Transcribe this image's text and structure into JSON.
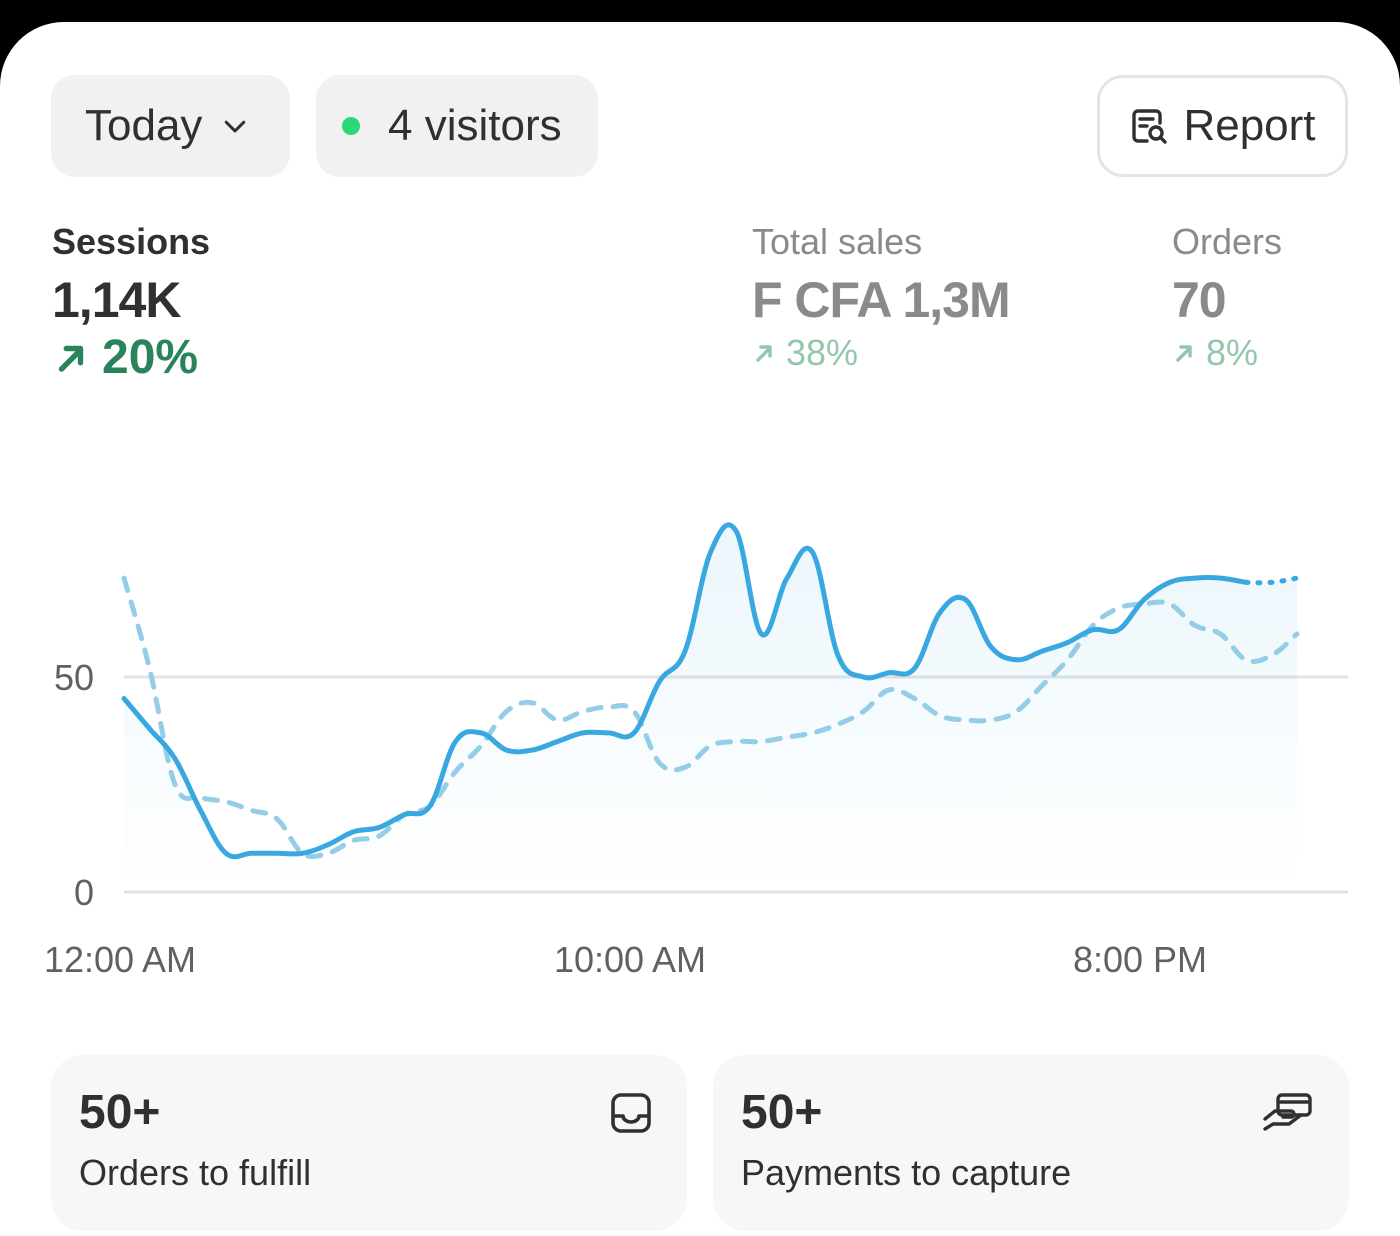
{
  "filters": {
    "date_range": "Today",
    "live_visitors": "4 visitors"
  },
  "header": {
    "report_label": "Report"
  },
  "metrics": {
    "sessions": {
      "label": "Sessions",
      "value": "1,14K",
      "delta": "20%"
    },
    "total_sales": {
      "label": "Total sales",
      "value": "F CFA 1,3M",
      "delta": "38%"
    },
    "orders": {
      "label": "Orders",
      "value": "70",
      "delta": "8%"
    }
  },
  "chart_data": {
    "type": "line",
    "title": "",
    "xlabel": "",
    "ylabel": "",
    "ylim": [
      0,
      100
    ],
    "y_ticks": [
      "0",
      "50"
    ],
    "x_ticks": [
      "12:00 AM",
      "10:00 AM",
      "8:00 PM"
    ],
    "x_range_hours": [
      0,
      24
    ],
    "grid": true,
    "legend": "none",
    "colors": {
      "current": "#3aa8e0",
      "previous": "#93cde8"
    },
    "series": [
      {
        "style": "solid",
        "x": [
          0,
          0.5,
          1,
          1.5,
          2,
          2.5,
          3,
          3.5,
          4,
          4.5,
          5,
          5.5,
          6,
          6.5,
          7,
          7.5,
          8,
          8.5,
          9,
          9.5,
          10,
          10.5,
          11,
          11.5,
          12,
          12.5,
          13,
          13.5,
          14,
          14.5,
          15,
          15.5,
          16,
          16.5,
          17,
          17.5,
          18,
          18.5,
          19,
          19.5,
          20,
          20.5,
          21,
          21.5,
          22,
          22.5,
          23
        ],
        "y": [
          45,
          38,
          31,
          19,
          9,
          9,
          9,
          9,
          11,
          14,
          15,
          18,
          20,
          35,
          37,
          33,
          33,
          35,
          37,
          37,
          37,
          49,
          56,
          79,
          84,
          60,
          73,
          79,
          55,
          50,
          51,
          52,
          65,
          68,
          57,
          54,
          56,
          58,
          61,
          61,
          68,
          72,
          73,
          73,
          72,
          72,
          73
        ]
      },
      {
        "style": "dashed",
        "x": [
          0,
          0.5,
          1,
          1.5,
          2,
          2.5,
          3,
          3.5,
          4,
          4.5,
          5,
          5.5,
          6,
          6.5,
          7,
          7.5,
          8,
          8.5,
          9,
          9.5,
          10,
          10.5,
          11,
          11.5,
          12,
          12.5,
          13,
          13.5,
          14,
          14.5,
          15,
          15.5,
          16,
          16.5,
          17,
          17.5,
          18,
          18.5,
          19,
          19.5,
          20,
          20.5,
          21,
          21.5,
          22,
          22.5,
          23
        ],
        "y": [
          73,
          52,
          25,
          22,
          21,
          19,
          17,
          9,
          9,
          12,
          13,
          18,
          20,
          28,
          34,
          42,
          44,
          40,
          42,
          43,
          42,
          30,
          29,
          34,
          35,
          35,
          36,
          37,
          39,
          42,
          47,
          45,
          41,
          40,
          40,
          42,
          48,
          54,
          62,
          66,
          67,
          67,
          62,
          60,
          54,
          55,
          60
        ]
      }
    ]
  },
  "cards": [
    {
      "count": "50+",
      "label": "Orders to fulfill",
      "icon": "inbox-icon"
    },
    {
      "count": "50+",
      "label": "Payments to capture",
      "icon": "hand-payment-icon"
    }
  ]
}
